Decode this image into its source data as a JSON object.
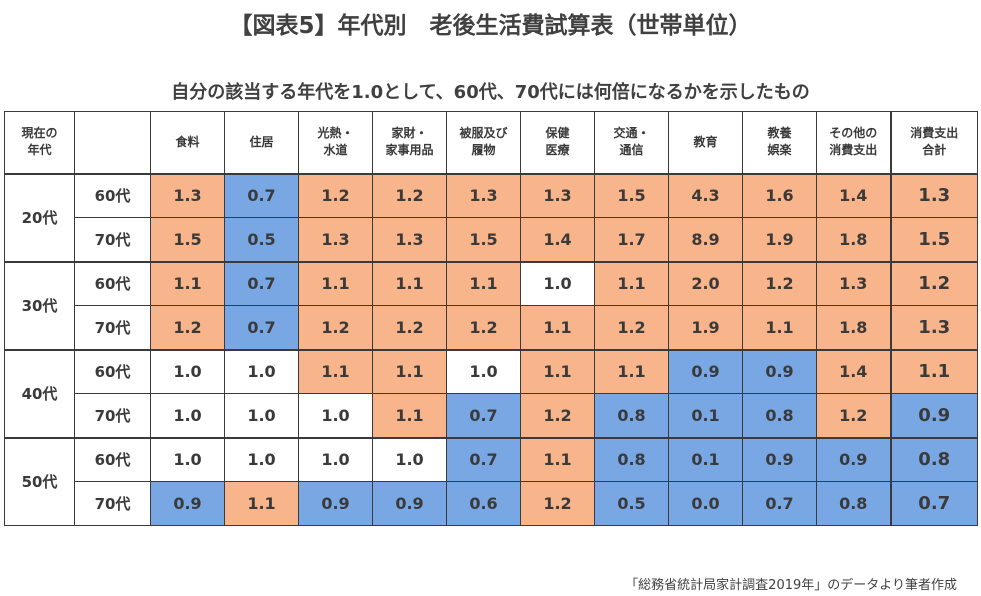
{
  "title": "【図表5】年代別　老後生活費試算表（世帯単位）",
  "subtitle": "自分の該当する年代を1.0として、60代、70代には何倍になるかを示したもの",
  "source": "「総務省統計局家計調査2019年」のデータより筆者作成",
  "colors": {
    "increase": "#f8b48a",
    "decrease": "#79a7e4",
    "neutral": "#ffffff"
  },
  "header": {
    "corner": "現在の年代",
    "columns": [
      "食料",
      "住居",
      "光熱・水道",
      "家財・家事用品",
      "被服及び履物",
      "保健医療",
      "交通・通信",
      "教育",
      "教養娯楽",
      "その他の消費支出",
      "消費支出合計"
    ]
  },
  "chart_data": {
    "type": "table",
    "title": "【図表5】年代別　老後生活費試算表（世帯単位）",
    "subtitle": "自分の該当する年代を1.0として、60代、70代には何倍になるかを示したもの",
    "columns": [
      "食料",
      "住居",
      "光熱・水道",
      "家財・家事用品",
      "被服及び履物",
      "保健医療",
      "交通・通信",
      "教育",
      "教養娯楽",
      "その他の消費支出",
      "消費支出合計"
    ],
    "groups": [
      {
        "current": "20代",
        "rows": [
          {
            "target": "60代",
            "values": [
              "1.3",
              "0.7",
              "1.2",
              "1.2",
              "1.3",
              "1.3",
              "1.5",
              "4.3",
              "1.6",
              "1.4",
              "1.3"
            ]
          },
          {
            "target": "70代",
            "values": [
              "1.5",
              "0.5",
              "1.3",
              "1.3",
              "1.5",
              "1.4",
              "1.7",
              "8.9",
              "1.9",
              "1.8",
              "1.5"
            ]
          }
        ]
      },
      {
        "current": "30代",
        "rows": [
          {
            "target": "60代",
            "values": [
              "1.1",
              "0.7",
              "1.1",
              "1.1",
              "1.1",
              "1.0",
              "1.1",
              "2.0",
              "1.2",
              "1.3",
              "1.2"
            ]
          },
          {
            "target": "70代",
            "values": [
              "1.2",
              "0.7",
              "1.2",
              "1.2",
              "1.2",
              "1.1",
              "1.2",
              "1.9",
              "1.1",
              "1.8",
              "1.3"
            ]
          }
        ]
      },
      {
        "current": "40代",
        "rows": [
          {
            "target": "60代",
            "values": [
              "1.0",
              "1.0",
              "1.1",
              "1.1",
              "1.0",
              "1.1",
              "1.1",
              "0.9",
              "0.9",
              "1.4",
              "1.1"
            ]
          },
          {
            "target": "70代",
            "values": [
              "1.0",
              "1.0",
              "1.0",
              "1.1",
              "0.7",
              "1.2",
              "0.8",
              "0.1",
              "0.8",
              "1.2",
              "0.9"
            ]
          }
        ]
      },
      {
        "current": "50代",
        "rows": [
          {
            "target": "60代",
            "values": [
              "1.0",
              "1.0",
              "1.0",
              "1.0",
              "0.7",
              "1.1",
              "0.8",
              "0.1",
              "0.9",
              "0.9",
              "0.8"
            ]
          },
          {
            "target": "70代",
            "values": [
              "0.9",
              "1.1",
              "0.9",
              "0.9",
              "0.6",
              "1.2",
              "0.5",
              "0.0",
              "0.7",
              "0.8",
              "0.7"
            ]
          }
        ]
      }
    ]
  }
}
